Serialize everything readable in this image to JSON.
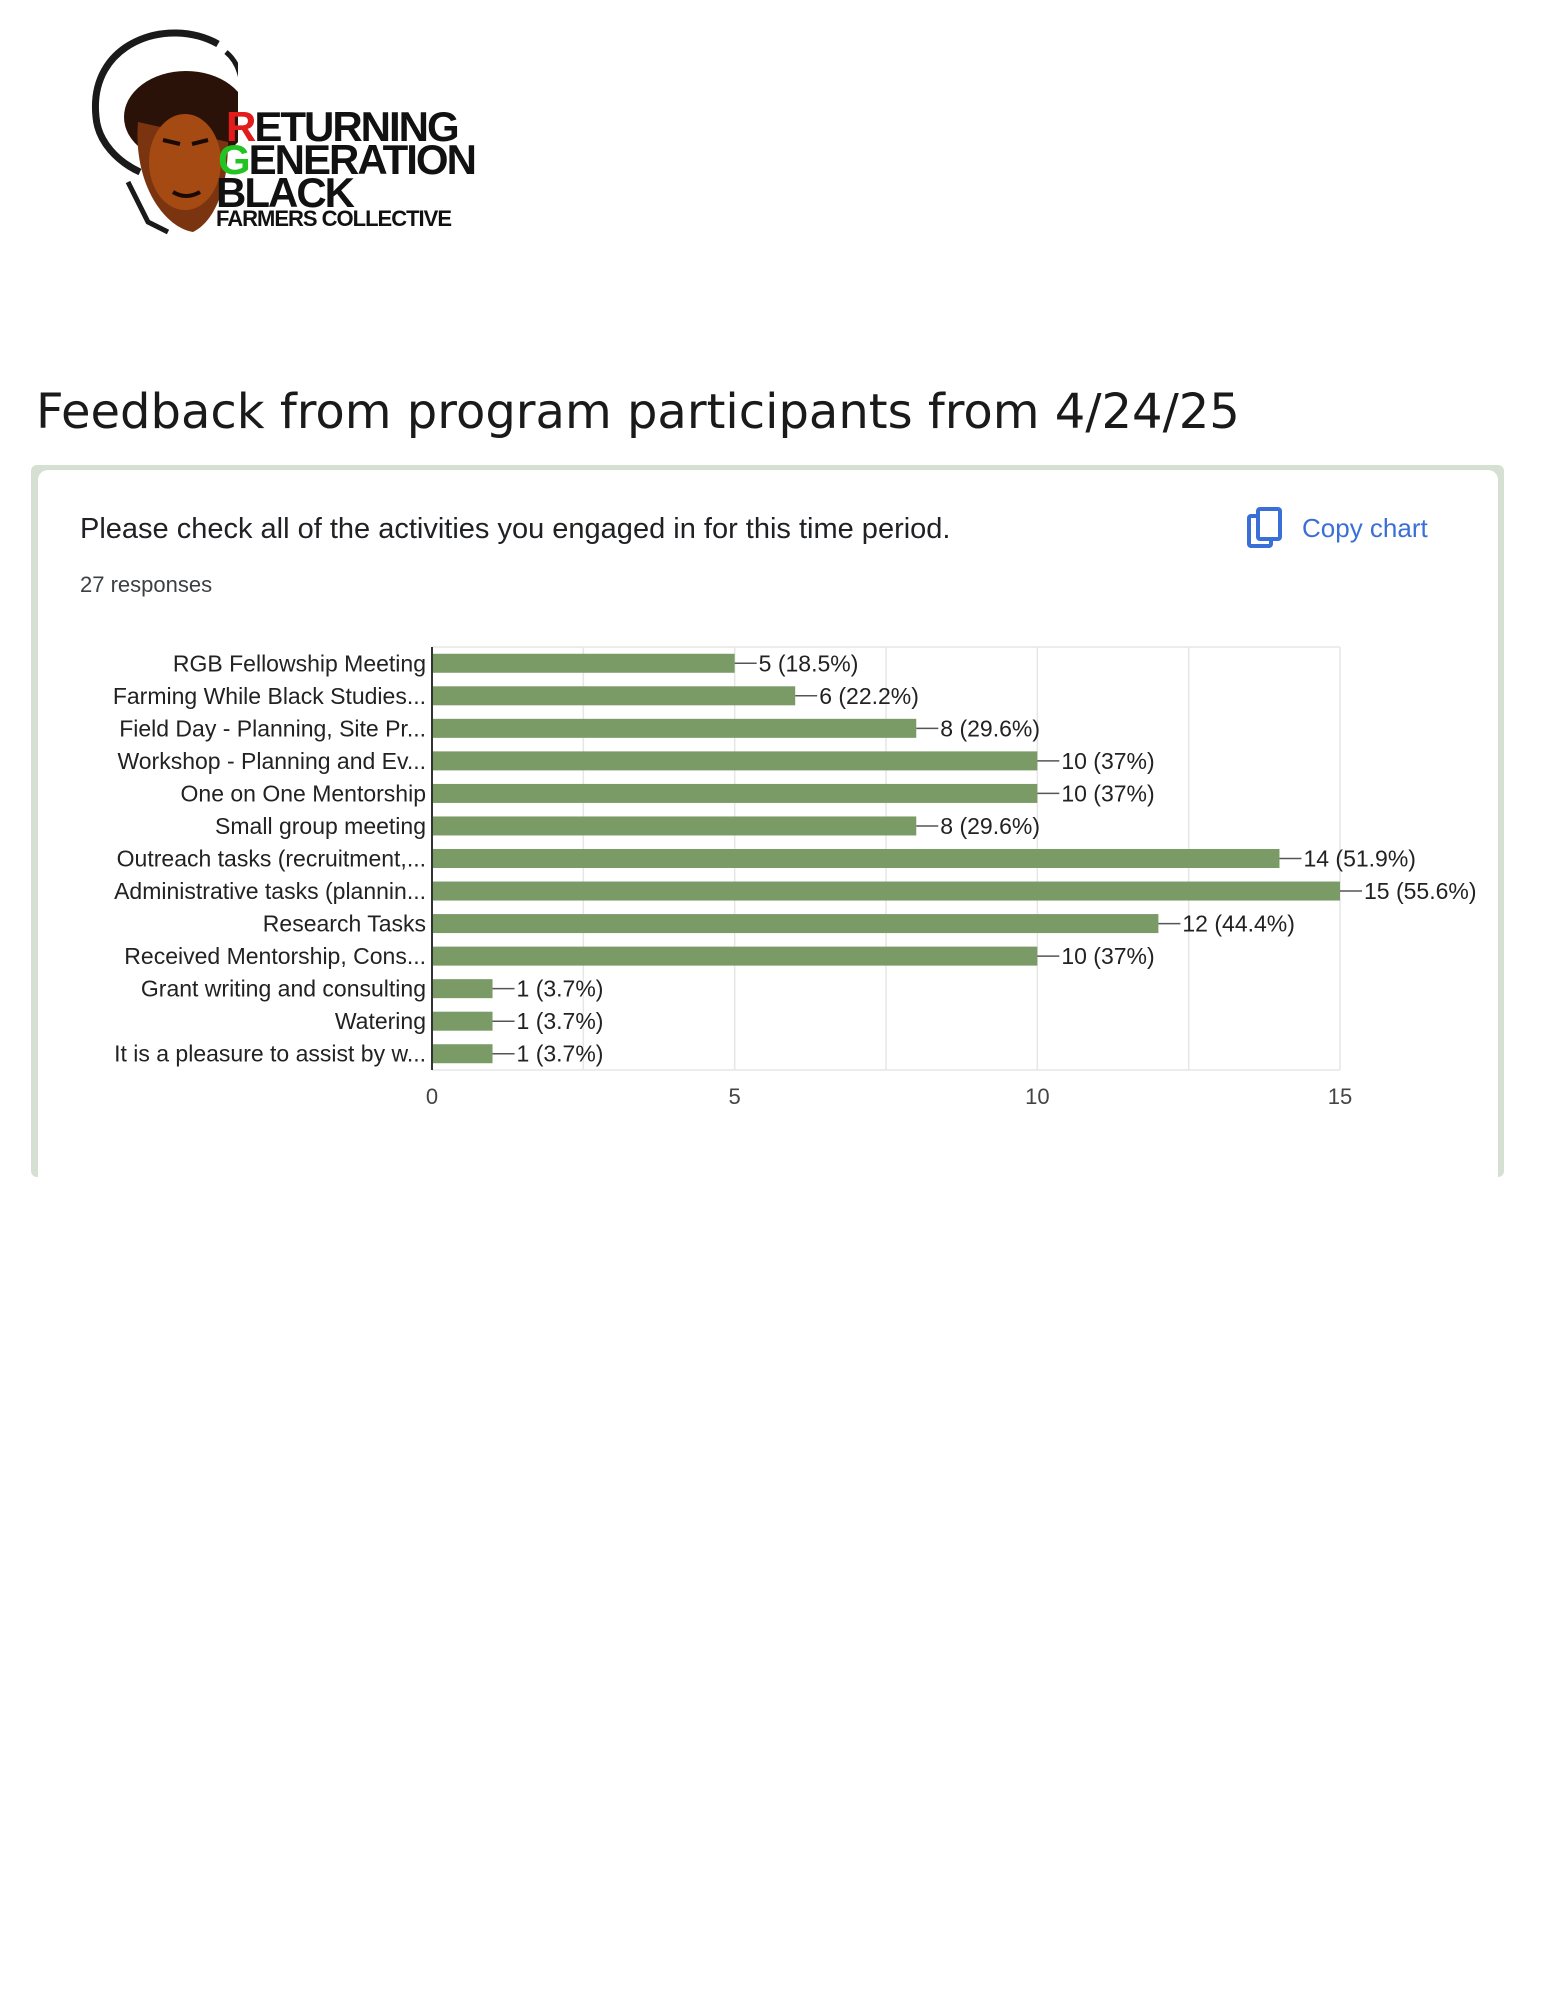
{
  "logo": {
    "line1_initial": "R",
    "line1_rest": "ETURNING",
    "line2_initial": "G",
    "line2_rest": "ENERATION",
    "line3": "BLACK",
    "line4": "FARMERS COLLECTIVE"
  },
  "page_heading": "Feedback from program participants from 4/24/25",
  "card": {
    "question": "Please check all of the activities you engaged in for this time period.",
    "responses": "27 responses",
    "copy_chart_label": "Copy chart"
  },
  "colors": {
    "bar": "#7a9a66",
    "grid": "#e6e6e6",
    "accent": "#3b6fd8",
    "card_frame": "#d5e0d2"
  },
  "chart_data": {
    "type": "bar",
    "orientation": "horizontal",
    "categories": [
      "RGB Fellowship Meeting",
      "Farming While Black Studies...",
      "Field Day - Planning, Site Pr...",
      "Workshop - Planning and Ev...",
      "One on One Mentorship",
      "Small group meeting",
      "Outreach tasks (recruitment,...",
      "Administrative tasks (plannin...",
      "Research Tasks",
      "Received Mentorship, Cons...",
      "Grant writing and consulting",
      "Watering",
      "It is a pleasure to assist by w..."
    ],
    "values": [
      5,
      6,
      8,
      10,
      10,
      8,
      14,
      15,
      12,
      10,
      1,
      1,
      1
    ],
    "value_labels": [
      "5 (18.5%)",
      "6 (22.2%)",
      "8 (29.6%)",
      "10 (37%)",
      "10 (37%)",
      "8 (29.6%)",
      "14 (51.9%)",
      "15 (55.6%)",
      "12 (44.4%)",
      "10 (37%)",
      "1 (3.7%)",
      "1 (3.7%)",
      "1 (3.7%)"
    ],
    "xlim": [
      0,
      15
    ],
    "xticks": [
      0,
      5,
      10,
      15
    ],
    "grid": true
  }
}
